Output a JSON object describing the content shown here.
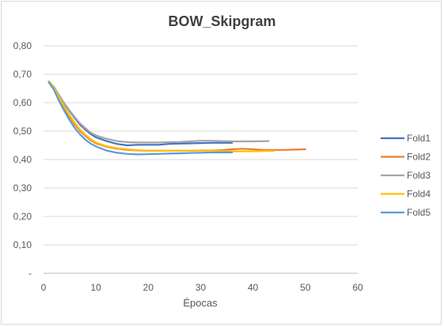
{
  "chart_data": {
    "type": "line",
    "title": "BOW_Skipgram",
    "xlabel": "Épocas",
    "ylabel": "",
    "xlim": [
      0,
      60
    ],
    "ylim": [
      0,
      0.8
    ],
    "x_ticks": [
      0,
      10,
      20,
      30,
      40,
      50,
      60
    ],
    "y_ticks": [
      0,
      0.1,
      0.2,
      0.3,
      0.4,
      0.5,
      0.6,
      0.7,
      0.8
    ],
    "y_tick_labels": [
      "-",
      "0,10",
      "0,20",
      "0,30",
      "0,40",
      "0,50",
      "0,60",
      "0,70",
      "0,80"
    ],
    "grid": true,
    "legend": "right",
    "series": [
      {
        "name": "Fold1",
        "color": "#4472c4",
        "x": [
          1,
          2,
          3,
          4,
          5,
          6,
          7,
          8,
          9,
          10,
          12,
          14,
          16,
          18,
          20,
          22,
          24,
          26,
          28,
          30,
          32,
          34,
          36
        ],
        "y": [
          0.675,
          0.655,
          0.625,
          0.595,
          0.57,
          0.545,
          0.522,
          0.505,
          0.49,
          0.478,
          0.465,
          0.455,
          0.45,
          0.452,
          0.452,
          0.452,
          0.455,
          0.456,
          0.457,
          0.458,
          0.459,
          0.459,
          0.459
        ]
      },
      {
        "name": "Fold2",
        "color": "#ed7d31",
        "x": [
          1,
          2,
          3,
          4,
          5,
          6,
          7,
          8,
          9,
          10,
          12,
          14,
          16,
          18,
          20,
          22,
          24,
          26,
          28,
          30,
          32,
          34,
          36,
          38,
          40,
          42,
          44,
          46,
          48,
          50
        ],
        "y": [
          0.675,
          0.65,
          0.615,
          0.58,
          0.55,
          0.522,
          0.5,
          0.483,
          0.468,
          0.457,
          0.445,
          0.438,
          0.434,
          0.432,
          0.431,
          0.431,
          0.431,
          0.431,
          0.431,
          0.432,
          0.432,
          0.433,
          0.436,
          0.438,
          0.436,
          0.434,
          0.434,
          0.434,
          0.435,
          0.436
        ]
      },
      {
        "name": "Fold3",
        "color": "#a5a5a5",
        "x": [
          1,
          2,
          3,
          4,
          5,
          6,
          7,
          8,
          9,
          10,
          12,
          14,
          16,
          18,
          20,
          22,
          24,
          26,
          28,
          30,
          32,
          34,
          36,
          38,
          40,
          43
        ],
        "y": [
          0.675,
          0.655,
          0.625,
          0.597,
          0.572,
          0.548,
          0.527,
          0.51,
          0.495,
          0.485,
          0.473,
          0.465,
          0.461,
          0.46,
          0.46,
          0.46,
          0.461,
          0.462,
          0.464,
          0.466,
          0.466,
          0.465,
          0.464,
          0.464,
          0.464,
          0.465
        ]
      },
      {
        "name": "Fold4",
        "color": "#ffc000",
        "x": [
          1,
          2,
          3,
          4,
          5,
          6,
          7,
          8,
          9,
          10,
          12,
          14,
          16,
          18,
          20,
          22,
          24,
          26,
          28,
          30,
          32,
          34,
          36,
          38,
          40,
          42,
          44
        ],
        "y": [
          0.675,
          0.652,
          0.618,
          0.585,
          0.555,
          0.528,
          0.505,
          0.487,
          0.472,
          0.46,
          0.447,
          0.44,
          0.436,
          0.433,
          0.431,
          0.431,
          0.431,
          0.431,
          0.431,
          0.432,
          0.432,
          0.43,
          0.429,
          0.429,
          0.429,
          0.43,
          0.43
        ]
      },
      {
        "name": "Fold5",
        "color": "#5b9bd5",
        "x": [
          1,
          2,
          3,
          4,
          5,
          6,
          7,
          8,
          9,
          10,
          12,
          14,
          16,
          18,
          20,
          22,
          24,
          26,
          28,
          30,
          32,
          34,
          36
        ],
        "y": [
          0.672,
          0.645,
          0.605,
          0.57,
          0.538,
          0.51,
          0.488,
          0.47,
          0.456,
          0.446,
          0.432,
          0.424,
          0.42,
          0.418,
          0.419,
          0.42,
          0.421,
          0.422,
          0.423,
          0.424,
          0.425,
          0.425,
          0.425
        ]
      }
    ]
  }
}
